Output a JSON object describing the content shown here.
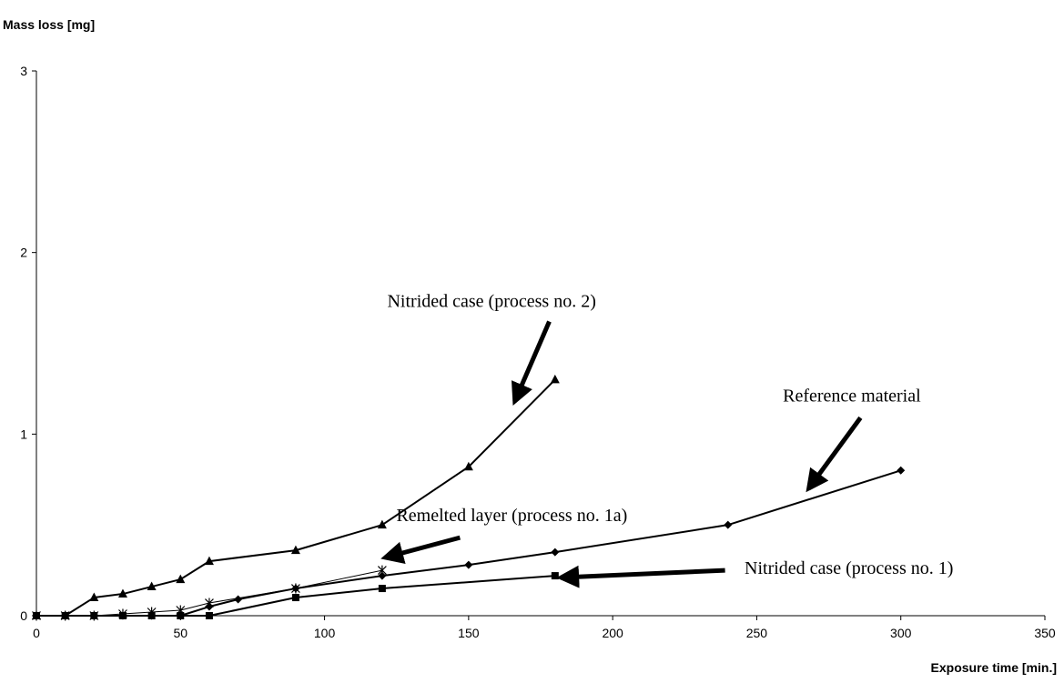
{
  "chart_data": {
    "type": "line",
    "title": "",
    "xlabel": "Exposure time [min.]",
    "ylabel": "Mass loss [mg]",
    "xlim": [
      0,
      350
    ],
    "ylim": [
      0,
      3
    ],
    "xticks": [
      0,
      50,
      100,
      150,
      200,
      250,
      300,
      350
    ],
    "yticks": [
      0,
      1,
      2,
      3
    ],
    "grid": false,
    "legend": "none",
    "series": [
      {
        "key": "nitrided2",
        "marker": "triangle",
        "points": [
          [
            0,
            0
          ],
          [
            10,
            0
          ],
          [
            20,
            0.1
          ],
          [
            30,
            0.12
          ],
          [
            40,
            0.16
          ],
          [
            50,
            0.2
          ],
          [
            60,
            0.3
          ],
          [
            90,
            0.36
          ],
          [
            120,
            0.5
          ],
          [
            150,
            0.82
          ],
          [
            180,
            1.3
          ]
        ]
      },
      {
        "key": "reference",
        "marker": "diamond",
        "points": [
          [
            0,
            0
          ],
          [
            10,
            0
          ],
          [
            20,
            0
          ],
          [
            30,
            0
          ],
          [
            40,
            0
          ],
          [
            50,
            0
          ],
          [
            60,
            0.05
          ],
          [
            70,
            0.09
          ],
          [
            90,
            0.15
          ],
          [
            120,
            0.22
          ],
          [
            150,
            0.28
          ],
          [
            180,
            0.35
          ],
          [
            240,
            0.5
          ],
          [
            300,
            0.8
          ]
        ]
      },
      {
        "key": "remelted1a",
        "marker": "star",
        "points": [
          [
            0,
            0
          ],
          [
            10,
            0
          ],
          [
            20,
            0
          ],
          [
            30,
            0.01
          ],
          [
            40,
            0.02
          ],
          [
            50,
            0.03
          ],
          [
            60,
            0.07
          ],
          [
            90,
            0.15
          ],
          [
            120,
            0.25
          ]
        ]
      },
      {
        "key": "nitrided1",
        "marker": "square",
        "points": [
          [
            0,
            0
          ],
          [
            10,
            0
          ],
          [
            20,
            0
          ],
          [
            30,
            0
          ],
          [
            40,
            0
          ],
          [
            50,
            0
          ],
          [
            60,
            0
          ],
          [
            90,
            0.1
          ],
          [
            120,
            0.15
          ],
          [
            180,
            0.22
          ]
        ]
      }
    ],
    "annotations": [
      {
        "key": "a_nitrided2",
        "text": "Nitrided case (process no. 2)",
        "text_at": [
          158,
          1.7
        ],
        "arrow_from": [
          178,
          1.62
        ],
        "arrow_to": [
          166,
          1.18
        ]
      },
      {
        "key": "a_reference",
        "text": "Reference material",
        "text_at": [
          283,
          1.18
        ],
        "arrow_from": [
          286,
          1.09
        ],
        "arrow_to": [
          268,
          0.7
        ]
      },
      {
        "key": "a_remelted",
        "text": "Remelted layer (process no. 1a)",
        "text_at": [
          165,
          0.52
        ],
        "arrow_from": [
          147,
          0.43
        ],
        "arrow_to": [
          121,
          0.32
        ]
      },
      {
        "key": "a_nitrided1",
        "text": "Nitrided case (process no. 1)",
        "text_at": [
          282,
          0.23
        ],
        "arrow_from": [
          239,
          0.25
        ],
        "arrow_to": [
          182,
          0.21
        ]
      }
    ]
  }
}
